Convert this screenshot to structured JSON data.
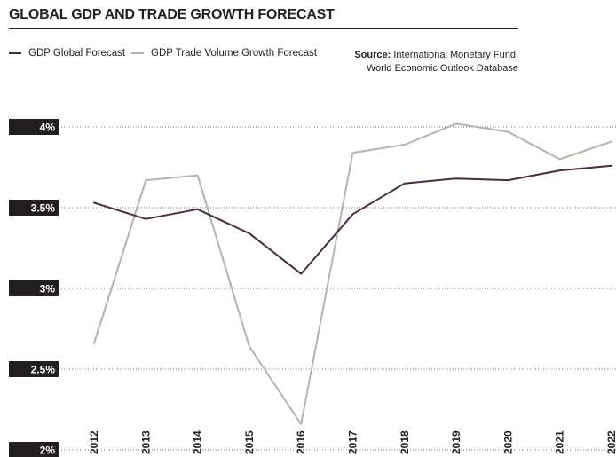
{
  "chart_data": {
    "type": "line",
    "title": "GLOBAL GDP AND TRADE GROWTH FORECAST",
    "source_label": "Source:",
    "source_text_line1": "International Monetary Fund,",
    "source_text_line2": "World Economic Outlook Database",
    "x": [
      "2012",
      "2013",
      "2014",
      "2015",
      "2016",
      "2017",
      "2018",
      "2019",
      "2020",
      "2021",
      "2022"
    ],
    "ylim": [
      2.0,
      4.0
    ],
    "yticks": [
      {
        "value": 4.0,
        "label": "4%"
      },
      {
        "value": 3.5,
        "label": "3.5%"
      },
      {
        "value": 3.0,
        "label": "3%"
      },
      {
        "value": 2.5,
        "label": "2.5%"
      },
      {
        "value": 2.0,
        "label": "2%"
      }
    ],
    "grid": true,
    "legend_position": "top-left",
    "series": [
      {
        "name": "GDP Global Forecast",
        "color": "#4a2a44",
        "values": [
          3.53,
          3.43,
          3.49,
          3.34,
          3.09,
          3.46,
          3.65,
          3.68,
          3.67,
          3.73,
          3.76
        ]
      },
      {
        "name": "GDP Trade Volume Growth Forecast",
        "color": "#b3b3b3",
        "values": [
          2.66,
          3.67,
          3.7,
          2.64,
          2.16,
          3.84,
          3.89,
          4.02,
          3.97,
          3.8,
          3.91
        ]
      }
    ]
  }
}
